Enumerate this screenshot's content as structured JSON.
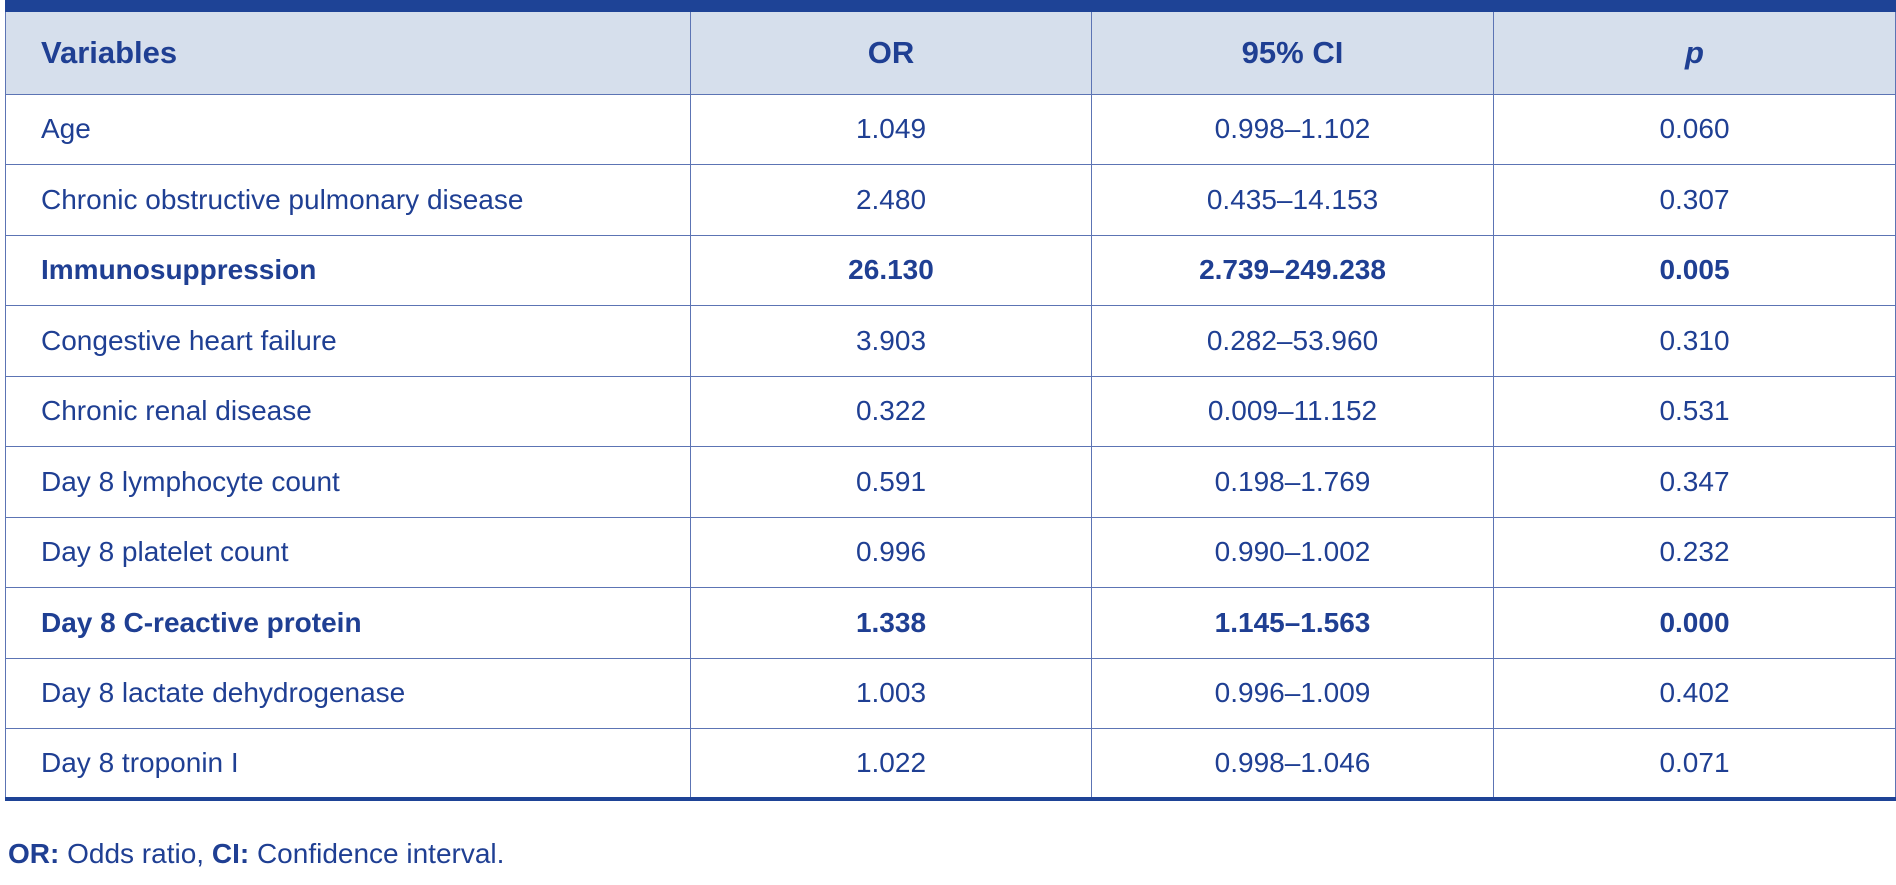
{
  "table": {
    "headers": [
      "Variables",
      "OR",
      "95% CI",
      "p"
    ],
    "rows": [
      {
        "variable": "Age",
        "or": "1.049",
        "ci": "0.998–1.102",
        "p": "0.060",
        "bold": false
      },
      {
        "variable": "Chronic obstructive pulmonary disease",
        "or": "2.480",
        "ci": "0.435–14.153",
        "p": "0.307",
        "bold": false
      },
      {
        "variable": "Immunosuppression",
        "or": "26.130",
        "ci": "2.739–249.238",
        "p": "0.005",
        "bold": true
      },
      {
        "variable": "Congestive heart failure",
        "or": "3.903",
        "ci": "0.282–53.960",
        "p": "0.310",
        "bold": false
      },
      {
        "variable": "Chronic renal disease",
        "or": "0.322",
        "ci": "0.009–11.152",
        "p": "0.531",
        "bold": false
      },
      {
        "variable": "Day 8 lymphocyte count",
        "or": "0.591",
        "ci": "0.198–1.769",
        "p": "0.347",
        "bold": false
      },
      {
        "variable": "Day 8 platelet count",
        "or": "0.996",
        "ci": "0.990–1.002",
        "p": "0.232",
        "bold": false
      },
      {
        "variable": "Day 8 C-reactive protein",
        "or": "1.338",
        "ci": "1.145–1.563",
        "p": "0.000",
        "bold": true
      },
      {
        "variable": "Day 8 lactate dehydrogenase",
        "or": "1.003",
        "ci": "0.996–1.009",
        "p": "0.402",
        "bold": false
      },
      {
        "variable": "Day 8 troponin I",
        "or": "1.022",
        "ci": "0.998–1.046",
        "p": "0.071",
        "bold": false
      }
    ]
  },
  "footnote": {
    "or_abbr": "OR:",
    "or_text": " Odds ratio, ",
    "ci_abbr": "CI:",
    "ci_text": " Confidence interval."
  },
  "colors": {
    "text": "#1f3f93",
    "header_bg": "#d6dfec",
    "rule": "#1e4396"
  }
}
